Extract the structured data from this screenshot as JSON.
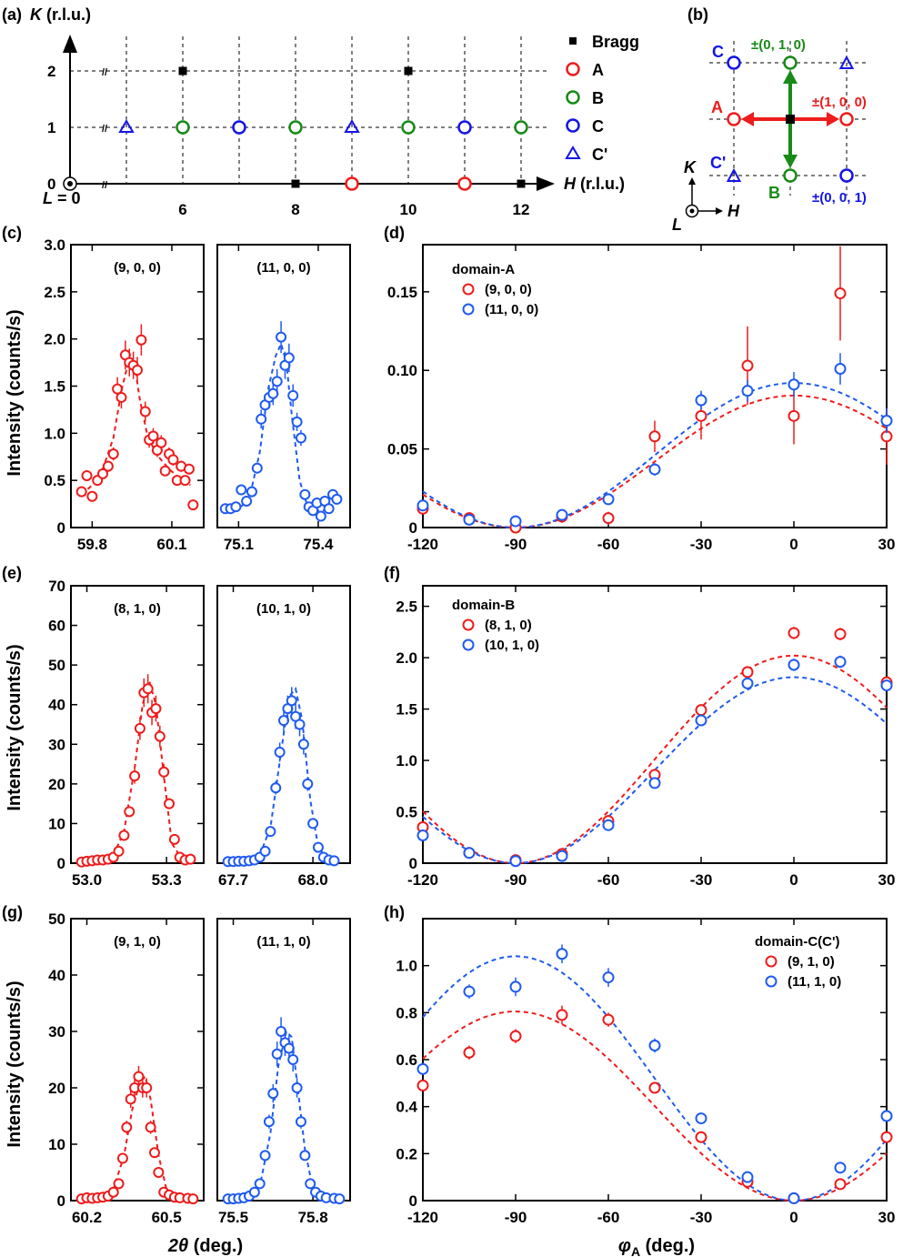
{
  "colors": {
    "red": "#ee1c1c",
    "green": "#178a17",
    "blue": "#1414e6",
    "blue_light": "#1f5bef",
    "black": "#000000"
  },
  "panel_labels": {
    "a": "(a)",
    "b": "(b)",
    "c": "(c)",
    "d": "(d)",
    "e": "(e)",
    "f": "(f)",
    "g": "(g)",
    "h": "(h)"
  },
  "panel_a": {
    "ylabel_var": "K",
    "ylabel_unit": " (r.l.u.)",
    "xlabel_var": "H",
    "xlabel_unit": " (r.l.u.)",
    "l_var": "L",
    "l_eq": " = 0",
    "yticks": [
      "0",
      "1",
      "2"
    ],
    "xticks": [
      "6",
      "8",
      "10",
      "12"
    ],
    "legend": [
      {
        "symbol": "square",
        "color": "#000000",
        "label": "Bragg"
      },
      {
        "symbol": "circle",
        "color": "#ee1c1c",
        "label": "A"
      },
      {
        "symbol": "circle",
        "color": "#178a17",
        "label": "B"
      },
      {
        "symbol": "circle",
        "color": "#1414e6",
        "label": "C"
      },
      {
        "symbol": "triangle",
        "color": "#1414e6",
        "label": "C'"
      }
    ],
    "points": [
      {
        "h": 6,
        "k": 2,
        "type": "Bragg"
      },
      {
        "h": 10,
        "k": 2,
        "type": "Bragg"
      },
      {
        "h": 8,
        "k": 0,
        "type": "Bragg"
      },
      {
        "h": 12,
        "k": 0,
        "type": "Bragg"
      },
      {
        "h": 9,
        "k": 0,
        "type": "A"
      },
      {
        "h": 11,
        "k": 0,
        "type": "A"
      },
      {
        "h": 6,
        "k": 1,
        "type": "B"
      },
      {
        "h": 8,
        "k": 1,
        "type": "B"
      },
      {
        "h": 10,
        "k": 1,
        "type": "B"
      },
      {
        "h": 12,
        "k": 1,
        "type": "B"
      },
      {
        "h": 7,
        "k": 1,
        "type": "C"
      },
      {
        "h": 11,
        "k": 1,
        "type": "C"
      },
      {
        "h": 5,
        "k": 1,
        "type": "C'"
      },
      {
        "h": 9,
        "k": 1,
        "type": "C'"
      }
    ]
  },
  "panel_b": {
    "label_C": "C",
    "label_A": "A",
    "label_Cp": "C'",
    "label_B": "B",
    "vec_010": "±(0, 1, 0)",
    "vec_100": "±(1, 0, 0)",
    "vec_001": "±(0, 0, 1)",
    "axis_K": "K",
    "axis_H": "H",
    "axis_L": "L"
  },
  "chart_data": [
    {
      "panel": "c-left",
      "type": "scatter",
      "title": "(9, 0, 0)",
      "color": "red",
      "xlim": [
        59.72,
        60.22
      ],
      "ylim": [
        0,
        3.0
      ],
      "yticks": [
        "0",
        "0.5",
        "1.0",
        "1.5",
        "2.0",
        "2.5",
        "3.0"
      ],
      "xticks": [
        "59.8",
        "60.1"
      ],
      "x": [
        59.76,
        59.78,
        59.8,
        59.82,
        59.84,
        59.86,
        59.88,
        59.895,
        59.91,
        59.925,
        59.94,
        59.955,
        59.97,
        59.985,
        60.0,
        60.015,
        60.03,
        60.045,
        60.06,
        60.075,
        60.09,
        60.105,
        60.12,
        60.135,
        60.15,
        60.165,
        60.18
      ],
      "y": [
        0.38,
        0.55,
        0.33,
        0.5,
        0.57,
        0.65,
        0.78,
        1.47,
        1.38,
        1.83,
        1.75,
        1.72,
        1.67,
        1.99,
        1.23,
        0.93,
        0.97,
        0.82,
        0.9,
        0.6,
        0.78,
        0.72,
        0.5,
        0.65,
        0.5,
        0.62,
        0.24
      ],
      "fit_x": [
        59.76,
        59.8,
        59.84,
        59.88,
        59.91,
        59.94,
        59.96,
        59.98,
        60.01,
        60.05,
        60.09,
        60.13,
        60.17
      ],
      "fit_y": [
        0.35,
        0.45,
        0.62,
        0.95,
        1.45,
        1.8,
        1.72,
        1.35,
        0.95,
        0.75,
        0.62,
        0.52,
        0.45
      ]
    },
    {
      "panel": "c-right",
      "type": "scatter",
      "title": "(11, 0, 0)",
      "color": "blue",
      "xlim": [
        75.02,
        75.52
      ],
      "ylim": [
        0,
        3.0
      ],
      "xticks": [
        "75.1",
        "75.4"
      ],
      "x": [
        75.05,
        75.07,
        75.09,
        75.11,
        75.13,
        75.15,
        75.17,
        75.185,
        75.2,
        75.215,
        75.23,
        75.245,
        75.26,
        75.275,
        75.29,
        75.305,
        75.32,
        75.335,
        75.35,
        75.365,
        75.38,
        75.395,
        75.41,
        75.425,
        75.44,
        75.455,
        75.47
      ],
      "y": [
        0.2,
        0.2,
        0.22,
        0.4,
        0.28,
        0.38,
        0.63,
        1.15,
        1.3,
        1.38,
        1.42,
        1.55,
        2.02,
        1.72,
        1.8,
        1.4,
        1.12,
        0.95,
        0.35,
        0.22,
        0.18,
        0.26,
        0.12,
        0.28,
        0.2,
        0.35,
        0.3
      ],
      "fit_x": [
        75.05,
        75.1,
        75.14,
        75.18,
        75.21,
        75.24,
        75.26,
        75.28,
        75.3,
        75.33,
        75.36,
        75.4,
        75.45
      ],
      "fit_y": [
        0.18,
        0.2,
        0.3,
        0.8,
        1.45,
        1.82,
        1.95,
        1.75,
        1.2,
        0.5,
        0.22,
        0.18,
        0.18
      ]
    },
    {
      "panel": "d",
      "type": "scatter",
      "title": "domain-A",
      "xlim": [
        -120,
        30
      ],
      "ylim": [
        0,
        0.18
      ],
      "yticks": [
        "0",
        "0.05",
        "0.10",
        "0.15"
      ],
      "xticks": [
        "-120",
        "-90",
        "-60",
        "-30",
        "0",
        "30"
      ],
      "series": [
        {
          "name": "(9, 0, 0)",
          "color": "red",
          "x": [
            -120,
            -105,
            -90,
            -75,
            -60,
            -45,
            -30,
            -15,
            0,
            15,
            30
          ],
          "y": [
            0.012,
            0.006,
            0.0,
            0.007,
            0.006,
            0.058,
            0.071,
            0.103,
            0.071,
            0.149,
            0.058
          ],
          "err": [
            0.003,
            0.003,
            0.003,
            0.004,
            0.004,
            0.01,
            0.015,
            0.025,
            0.018,
            0.03,
            0.018
          ]
        },
        {
          "name": "(11, 0, 0)",
          "color": "blue",
          "x": [
            -120,
            -105,
            -90,
            -75,
            -60,
            -45,
            -30,
            -15,
            0,
            15,
            30
          ],
          "y": [
            0.014,
            0.005,
            0.004,
            0.008,
            0.018,
            0.037,
            0.081,
            0.087,
            0.091,
            0.101,
            0.068
          ],
          "err": [
            0.002,
            0.002,
            0.002,
            0.002,
            0.003,
            0.004,
            0.006,
            0.007,
            0.008,
            0.01,
            0.008
          ]
        }
      ],
      "fits": [
        {
          "color": "red",
          "amp": 0.084
        },
        {
          "color": "blue",
          "amp": 0.092
        }
      ]
    },
    {
      "panel": "e-left",
      "type": "scatter",
      "title": "(8, 1, 0)",
      "color": "red",
      "xlim": [
        52.94,
        53.44
      ],
      "ylim": [
        0,
        70
      ],
      "yticks": [
        "0",
        "10",
        "20",
        "30",
        "40",
        "50",
        "60",
        "70"
      ],
      "xticks": [
        "53.0",
        "53.3"
      ],
      "x": [
        52.98,
        53.0,
        53.02,
        53.04,
        53.06,
        53.08,
        53.1,
        53.12,
        53.14,
        53.16,
        53.18,
        53.2,
        53.215,
        53.23,
        53.245,
        53.26,
        53.275,
        53.29,
        53.31,
        53.33,
        53.35,
        53.37,
        53.39
      ],
      "y": [
        0.3,
        0.5,
        0.6,
        0.8,
        0.8,
        1,
        1.5,
        3,
        7,
        13,
        22,
        34,
        43,
        44,
        38,
        39,
        32,
        23,
        15,
        6,
        1.5,
        0.8,
        1
      ],
      "fit_x": [
        52.98,
        53.04,
        53.1,
        53.14,
        53.18,
        53.21,
        53.235,
        53.26,
        53.29,
        53.32,
        53.36,
        53.4
      ],
      "fit_y": [
        0.3,
        0.5,
        2,
        8,
        24,
        40,
        46,
        40,
        22,
        5,
        0.8,
        0.3
      ]
    },
    {
      "panel": "e-right",
      "type": "scatter",
      "title": "(10, 1, 0)",
      "color": "blue",
      "xlim": [
        67.64,
        68.14
      ],
      "ylim": [
        0,
        70
      ],
      "xticks": [
        "67.7",
        "68.0"
      ],
      "x": [
        67.68,
        67.7,
        67.72,
        67.74,
        67.76,
        67.78,
        67.8,
        67.82,
        67.84,
        67.86,
        67.875,
        67.89,
        67.905,
        67.92,
        67.935,
        67.95,
        67.965,
        67.98,
        68.0,
        68.02,
        68.04,
        68.06,
        68.08
      ],
      "y": [
        0.4,
        0.4,
        0.5,
        0.5,
        0.6,
        0.8,
        1.5,
        3,
        8,
        19,
        28,
        36,
        39,
        41,
        37,
        35,
        30,
        20,
        10,
        4,
        1.5,
        0.8,
        0.6
      ],
      "fit_x": [
        67.68,
        67.74,
        67.8,
        67.84,
        67.88,
        67.91,
        67.935,
        67.96,
        67.99,
        68.02,
        68.06,
        68.1
      ],
      "fit_y": [
        0.3,
        0.5,
        2,
        9,
        28,
        42,
        44,
        36,
        16,
        4,
        0.6,
        0.3
      ]
    },
    {
      "panel": "f",
      "type": "scatter",
      "title": "domain-B",
      "xlim": [
        -120,
        30
      ],
      "ylim": [
        0,
        2.7
      ],
      "yticks": [
        "0",
        "0.5",
        "1.0",
        "1.5",
        "2.0",
        "2.5"
      ],
      "xticks": [
        "-120",
        "-90",
        "-60",
        "-30",
        "0",
        "30"
      ],
      "series": [
        {
          "name": "(8, 1, 0)",
          "color": "red",
          "x": [
            -120,
            -105,
            -90,
            -75,
            -60,
            -45,
            -30,
            -15,
            0,
            15,
            30
          ],
          "y": [
            0.35,
            0.1,
            0.03,
            0.09,
            0.41,
            0.86,
            1.49,
            1.86,
            2.24,
            2.23,
            1.76
          ],
          "err": [
            0.02,
            0.02,
            0.02,
            0.02,
            0.03,
            0.04,
            0.05,
            0.05,
            0.06,
            0.06,
            0.05
          ]
        },
        {
          "name": "(10, 1, 0)",
          "color": "blue",
          "x": [
            -120,
            -105,
            -90,
            -75,
            -60,
            -45,
            -30,
            -15,
            0,
            15,
            30
          ],
          "y": [
            0.27,
            0.1,
            0.02,
            0.07,
            0.37,
            0.78,
            1.39,
            1.75,
            1.93,
            1.96,
            1.73
          ],
          "err": [
            0.02,
            0.02,
            0.02,
            0.02,
            0.03,
            0.04,
            0.05,
            0.05,
            0.06,
            0.06,
            0.05
          ]
        }
      ],
      "fits": [
        {
          "color": "red",
          "amp": 2.02
        },
        {
          "color": "blue",
          "amp": 1.81
        }
      ]
    },
    {
      "panel": "g-left",
      "type": "scatter",
      "title": "(9, 1, 0)",
      "color": "red",
      "xlim": [
        60.14,
        60.64
      ],
      "ylim": [
        0,
        50
      ],
      "yticks": [
        "0",
        "10",
        "20",
        "30",
        "40",
        "50"
      ],
      "xticks": [
        "60.2",
        "60.5"
      ],
      "x": [
        60.18,
        60.2,
        60.22,
        60.24,
        60.26,
        60.28,
        60.3,
        60.32,
        60.335,
        60.35,
        60.365,
        60.38,
        60.395,
        60.41,
        60.425,
        60.44,
        60.455,
        60.47,
        60.49,
        60.51,
        60.53,
        60.55,
        60.58,
        60.6
      ],
      "y": [
        0.3,
        0.5,
        0.4,
        0.5,
        0.6,
        0.8,
        1.5,
        3,
        7.5,
        13,
        18,
        20,
        22,
        20,
        20,
        13,
        8.5,
        5,
        1.5,
        1,
        0.6,
        0.5,
        0.4,
        0.3
      ],
      "fit_x": [
        60.18,
        60.24,
        60.3,
        60.34,
        60.37,
        60.4,
        60.42,
        60.44,
        60.47,
        60.5,
        60.54,
        60.6
      ],
      "fit_y": [
        0.3,
        0.5,
        2,
        8,
        16,
        21,
        22,
        18,
        8,
        2,
        0.5,
        0.3
      ]
    },
    {
      "panel": "g-right",
      "type": "scatter",
      "title": "(11, 1, 0)",
      "color": "blue",
      "xlim": [
        75.44,
        75.94
      ],
      "ylim": [
        0,
        50
      ],
      "xticks": [
        "75.5",
        "75.8"
      ],
      "x": [
        75.48,
        75.5,
        75.52,
        75.54,
        75.56,
        75.58,
        75.6,
        75.62,
        75.635,
        75.65,
        75.665,
        75.68,
        75.695,
        75.71,
        75.725,
        75.74,
        75.755,
        75.77,
        75.79,
        75.81,
        75.83,
        75.85,
        75.88,
        75.9
      ],
      "y": [
        0.3,
        0.3,
        0.4,
        0.5,
        0.8,
        1.5,
        3,
        8,
        14,
        19,
        26,
        30,
        28,
        27,
        25,
        20,
        14,
        8,
        3,
        1.5,
        0.8,
        0.5,
        0.4,
        0.3
      ],
      "fit_x": [
        75.48,
        75.54,
        75.6,
        75.64,
        75.67,
        75.7,
        75.72,
        75.74,
        75.77,
        75.8,
        75.84,
        75.9
      ],
      "fit_y": [
        0.3,
        0.5,
        2.5,
        12,
        24,
        30,
        29,
        21,
        9,
        2,
        0.5,
        0.3
      ]
    },
    {
      "panel": "h",
      "type": "scatter",
      "title": "domain-C(C')",
      "xlim": [
        -120,
        30
      ],
      "ylim": [
        0,
        1.2
      ],
      "yticks": [
        "0",
        "0.2",
        "0.4",
        "0.6",
        "0.8",
        "1.0"
      ],
      "xticks": [
        "-120",
        "-90",
        "-60",
        "-30",
        "0",
        "30"
      ],
      "series": [
        {
          "name": "(9, 1, 0)",
          "color": "red",
          "x": [
            -120,
            -105,
            -90,
            -75,
            -60,
            -45,
            -30,
            -15,
            0,
            15,
            30
          ],
          "y": [
            0.49,
            0.63,
            0.7,
            0.79,
            0.77,
            0.48,
            0.27,
            0.08,
            0.01,
            0.07,
            0.27
          ],
          "err": [
            0.02,
            0.03,
            0.03,
            0.04,
            0.03,
            0.02,
            0.02,
            0.01,
            0.01,
            0.01,
            0.02
          ]
        },
        {
          "name": "(11, 1, 0)",
          "color": "blue",
          "x": [
            -120,
            -105,
            -90,
            -75,
            -60,
            -45,
            -30,
            -15,
            0,
            15,
            30
          ],
          "y": [
            0.56,
            0.89,
            0.91,
            1.05,
            0.95,
            0.66,
            0.35,
            0.1,
            0.01,
            0.14,
            0.36
          ],
          "err": [
            0.02,
            0.03,
            0.04,
            0.04,
            0.04,
            0.03,
            0.02,
            0.01,
            0.01,
            0.01,
            0.02
          ]
        }
      ],
      "fits": [
        {
          "color": "red",
          "amp": 0.805
        },
        {
          "color": "blue",
          "amp": 1.04
        }
      ]
    }
  ],
  "axis_labels": {
    "intensity": "Intensity (counts/s)",
    "two_theta_var": "2θ",
    "two_theta_unit": " (deg.)",
    "phi_var": "φ",
    "phi_sub": "A",
    "phi_unit": " (deg.)"
  }
}
